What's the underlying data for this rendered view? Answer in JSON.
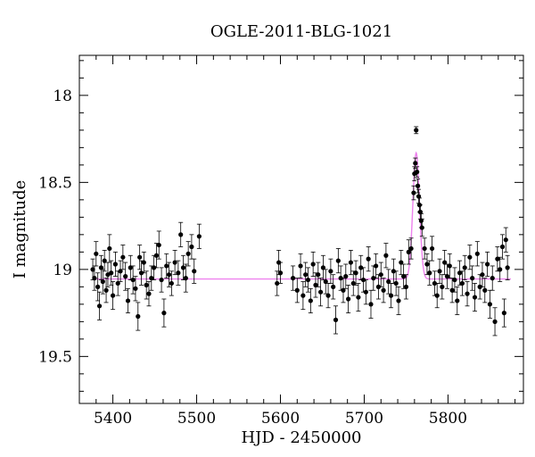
{
  "chart_data": {
    "type": "scatter",
    "title": "OGLE-2011-BLG-1021",
    "xlabel": "HJD - 2450000",
    "ylabel": "I magnitude",
    "xlim": [
      5360,
      5890
    ],
    "ylim": [
      19.77,
      17.77
    ],
    "y_inverted": true,
    "x_ticks": [
      5400,
      5500,
      5600,
      5700,
      5800
    ],
    "y_ticks": [
      18,
      18.5,
      19,
      19.5
    ],
    "x_tick_labels": [
      "5400",
      "5500",
      "5600",
      "5700",
      "5800"
    ],
    "y_tick_labels": [
      "18",
      "18.5",
      "19",
      "19.5"
    ],
    "grid": false,
    "marker_color": "#000000",
    "model_color": "#ee82ee",
    "series": [
      {
        "kind": "data",
        "points": [
          {
            "x": 5376,
            "y": 19.0,
            "e": 0.06
          },
          {
            "x": 5378,
            "y": 19.05,
            "e": 0.07
          },
          {
            "x": 5380,
            "y": 18.91,
            "e": 0.07
          },
          {
            "x": 5382,
            "y": 19.1,
            "e": 0.08
          },
          {
            "x": 5384,
            "y": 19.21,
            "e": 0.08
          },
          {
            "x": 5386,
            "y": 18.99,
            "e": 0.07
          },
          {
            "x": 5388,
            "y": 19.07,
            "e": 0.07
          },
          {
            "x": 5390,
            "y": 18.95,
            "e": 0.06
          },
          {
            "x": 5392,
            "y": 19.12,
            "e": 0.07
          },
          {
            "x": 5394,
            "y": 19.03,
            "e": 0.07
          },
          {
            "x": 5396,
            "y": 18.88,
            "e": 0.08
          },
          {
            "x": 5398,
            "y": 19.02,
            "e": 0.07
          },
          {
            "x": 5400,
            "y": 19.15,
            "e": 0.08
          },
          {
            "x": 5403,
            "y": 18.97,
            "e": 0.07
          },
          {
            "x": 5406,
            "y": 19.08,
            "e": 0.07
          },
          {
            "x": 5409,
            "y": 19.01,
            "e": 0.06
          },
          {
            "x": 5412,
            "y": 18.93,
            "e": 0.07
          },
          {
            "x": 5415,
            "y": 19.04,
            "e": 0.08
          },
          {
            "x": 5418,
            "y": 19.18,
            "e": 0.07
          },
          {
            "x": 5421,
            "y": 18.99,
            "e": 0.07
          },
          {
            "x": 5424,
            "y": 19.06,
            "e": 0.08
          },
          {
            "x": 5427,
            "y": 19.11,
            "e": 0.07
          },
          {
            "x": 5430,
            "y": 19.27,
            "e": 0.08
          },
          {
            "x": 5432,
            "y": 18.93,
            "e": 0.07
          },
          {
            "x": 5434,
            "y": 19.02,
            "e": 0.07
          },
          {
            "x": 5437,
            "y": 18.96,
            "e": 0.06
          },
          {
            "x": 5440,
            "y": 19.09,
            "e": 0.08
          },
          {
            "x": 5443,
            "y": 19.14,
            "e": 0.07
          },
          {
            "x": 5446,
            "y": 19.05,
            "e": 0.07
          },
          {
            "x": 5449,
            "y": 18.99,
            "e": 0.07
          },
          {
            "x": 5452,
            "y": 18.92,
            "e": 0.07
          },
          {
            "x": 5455,
            "y": 18.86,
            "e": 0.08
          },
          {
            "x": 5458,
            "y": 19.06,
            "e": 0.07
          },
          {
            "x": 5461,
            "y": 19.25,
            "e": 0.08
          },
          {
            "x": 5464,
            "y": 18.98,
            "e": 0.07
          },
          {
            "x": 5467,
            "y": 19.03,
            "e": 0.07
          },
          {
            "x": 5470,
            "y": 19.08,
            "e": 0.07
          },
          {
            "x": 5474,
            "y": 18.96,
            "e": 0.07
          },
          {
            "x": 5478,
            "y": 19.02,
            "e": 0.07
          },
          {
            "x": 5481,
            "y": 18.8,
            "e": 0.07
          },
          {
            "x": 5484,
            "y": 18.99,
            "e": 0.07
          },
          {
            "x": 5487,
            "y": 19.05,
            "e": 0.08
          },
          {
            "x": 5490,
            "y": 18.91,
            "e": 0.07
          },
          {
            "x": 5494,
            "y": 18.87,
            "e": 0.07
          },
          {
            "x": 5497,
            "y": 19.01,
            "e": 0.07
          },
          {
            "x": 5503,
            "y": 18.81,
            "e": 0.07
          },
          {
            "x": 5596,
            "y": 19.08,
            "e": 0.07
          },
          {
            "x": 5598,
            "y": 18.96,
            "e": 0.07
          },
          {
            "x": 5600,
            "y": 19.02,
            "e": 0.06
          },
          {
            "x": 5615,
            "y": 19.05,
            "e": 0.07
          },
          {
            "x": 5620,
            "y": 19.12,
            "e": 0.07
          },
          {
            "x": 5624,
            "y": 18.98,
            "e": 0.07
          },
          {
            "x": 5627,
            "y": 19.15,
            "e": 0.08
          },
          {
            "x": 5630,
            "y": 19.03,
            "e": 0.07
          },
          {
            "x": 5633,
            "y": 19.06,
            "e": 0.07
          },
          {
            "x": 5636,
            "y": 19.18,
            "e": 0.07
          },
          {
            "x": 5639,
            "y": 18.97,
            "e": 0.07
          },
          {
            "x": 5642,
            "y": 19.09,
            "e": 0.07
          },
          {
            "x": 5645,
            "y": 19.03,
            "e": 0.07
          },
          {
            "x": 5648,
            "y": 19.13,
            "e": 0.08
          },
          {
            "x": 5651,
            "y": 18.99,
            "e": 0.07
          },
          {
            "x": 5654,
            "y": 19.07,
            "e": 0.07
          },
          {
            "x": 5657,
            "y": 19.15,
            "e": 0.07
          },
          {
            "x": 5660,
            "y": 19.01,
            "e": 0.07
          },
          {
            "x": 5663,
            "y": 19.1,
            "e": 0.07
          },
          {
            "x": 5666,
            "y": 19.29,
            "e": 0.08
          },
          {
            "x": 5669,
            "y": 18.95,
            "e": 0.07
          },
          {
            "x": 5672,
            "y": 19.05,
            "e": 0.07
          },
          {
            "x": 5675,
            "y": 19.12,
            "e": 0.07
          },
          {
            "x": 5678,
            "y": 19.04,
            "e": 0.07
          },
          {
            "x": 5681,
            "y": 19.17,
            "e": 0.08
          },
          {
            "x": 5684,
            "y": 18.96,
            "e": 0.07
          },
          {
            "x": 5687,
            "y": 19.08,
            "e": 0.07
          },
          {
            "x": 5690,
            "y": 19.02,
            "e": 0.07
          },
          {
            "x": 5693,
            "y": 19.16,
            "e": 0.08
          },
          {
            "x": 5696,
            "y": 18.99,
            "e": 0.07
          },
          {
            "x": 5699,
            "y": 19.06,
            "e": 0.07
          },
          {
            "x": 5702,
            "y": 19.13,
            "e": 0.07
          },
          {
            "x": 5705,
            "y": 18.94,
            "e": 0.07
          },
          {
            "x": 5708,
            "y": 19.2,
            "e": 0.08
          },
          {
            "x": 5711,
            "y": 19.05,
            "e": 0.07
          },
          {
            "x": 5714,
            "y": 18.98,
            "e": 0.07
          },
          {
            "x": 5717,
            "y": 19.1,
            "e": 0.07
          },
          {
            "x": 5720,
            "y": 19.03,
            "e": 0.07
          },
          {
            "x": 5723,
            "y": 19.12,
            "e": 0.07
          },
          {
            "x": 5726,
            "y": 18.92,
            "e": 0.07
          },
          {
            "x": 5729,
            "y": 19.07,
            "e": 0.07
          },
          {
            "x": 5732,
            "y": 19.15,
            "e": 0.07
          },
          {
            "x": 5735,
            "y": 19.01,
            "e": 0.07
          },
          {
            "x": 5738,
            "y": 19.08,
            "e": 0.07
          },
          {
            "x": 5741,
            "y": 19.18,
            "e": 0.08
          },
          {
            "x": 5744,
            "y": 18.96,
            "e": 0.07
          },
          {
            "x": 5747,
            "y": 19.04,
            "e": 0.07
          },
          {
            "x": 5750,
            "y": 19.1,
            "e": 0.07
          },
          {
            "x": 5753,
            "y": 18.9,
            "e": 0.07
          },
          {
            "x": 5756,
            "y": 18.88,
            "e": 0.06
          },
          {
            "x": 5759,
            "y": 18.56,
            "e": 0.04
          },
          {
            "x": 5760,
            "y": 18.45,
            "e": 0.04
          },
          {
            "x": 5761,
            "y": 18.39,
            "e": 0.03
          },
          {
            "x": 5762,
            "y": 18.2,
            "e": 0.02
          },
          {
            "x": 5763,
            "y": 18.44,
            "e": 0.03
          },
          {
            "x": 5764,
            "y": 18.52,
            "e": 0.04
          },
          {
            "x": 5765,
            "y": 18.58,
            "e": 0.04
          },
          {
            "x": 5766,
            "y": 18.63,
            "e": 0.04
          },
          {
            "x": 5767,
            "y": 18.67,
            "e": 0.04
          },
          {
            "x": 5768,
            "y": 18.72,
            "e": 0.04
          },
          {
            "x": 5769,
            "y": 18.76,
            "e": 0.05
          },
          {
            "x": 5772,
            "y": 18.88,
            "e": 0.06
          },
          {
            "x": 5775,
            "y": 18.97,
            "e": 0.06
          },
          {
            "x": 5778,
            "y": 19.02,
            "e": 0.07
          },
          {
            "x": 5781,
            "y": 18.88,
            "e": 0.07
          },
          {
            "x": 5784,
            "y": 19.08,
            "e": 0.07
          },
          {
            "x": 5787,
            "y": 19.15,
            "e": 0.07
          },
          {
            "x": 5790,
            "y": 19.01,
            "e": 0.07
          },
          {
            "x": 5793,
            "y": 19.1,
            "e": 0.07
          },
          {
            "x": 5796,
            "y": 18.96,
            "e": 0.07
          },
          {
            "x": 5799,
            "y": 19.04,
            "e": 0.07
          },
          {
            "x": 5802,
            "y": 18.98,
            "e": 0.07
          },
          {
            "x": 5805,
            "y": 19.12,
            "e": 0.07
          },
          {
            "x": 5808,
            "y": 19.06,
            "e": 0.07
          },
          {
            "x": 5811,
            "y": 19.18,
            "e": 0.08
          },
          {
            "x": 5814,
            "y": 19.02,
            "e": 0.07
          },
          {
            "x": 5817,
            "y": 19.08,
            "e": 0.07
          },
          {
            "x": 5820,
            "y": 18.99,
            "e": 0.07
          },
          {
            "x": 5823,
            "y": 19.14,
            "e": 0.07
          },
          {
            "x": 5826,
            "y": 18.93,
            "e": 0.07
          },
          {
            "x": 5829,
            "y": 19.05,
            "e": 0.07
          },
          {
            "x": 5832,
            "y": 19.16,
            "e": 0.08
          },
          {
            "x": 5835,
            "y": 18.91,
            "e": 0.07
          },
          {
            "x": 5838,
            "y": 19.1,
            "e": 0.07
          },
          {
            "x": 5841,
            "y": 19.03,
            "e": 0.07
          },
          {
            "x": 5844,
            "y": 19.12,
            "e": 0.07
          },
          {
            "x": 5847,
            "y": 18.97,
            "e": 0.07
          },
          {
            "x": 5850,
            "y": 19.2,
            "e": 0.08
          },
          {
            "x": 5853,
            "y": 19.05,
            "e": 0.07
          },
          {
            "x": 5856,
            "y": 19.3,
            "e": 0.08
          },
          {
            "x": 5859,
            "y": 18.94,
            "e": 0.07
          },
          {
            "x": 5862,
            "y": 19.0,
            "e": 0.07
          },
          {
            "x": 5865,
            "y": 18.87,
            "e": 0.07
          },
          {
            "x": 5867,
            "y": 19.25,
            "e": 0.08
          },
          {
            "x": 5869,
            "y": 18.83,
            "e": 0.07
          },
          {
            "x": 5871,
            "y": 18.99,
            "e": 0.07
          }
        ]
      },
      {
        "kind": "model",
        "baseline": 19.055,
        "peak_x": 5762,
        "peak_y": 18.33
      }
    ]
  }
}
